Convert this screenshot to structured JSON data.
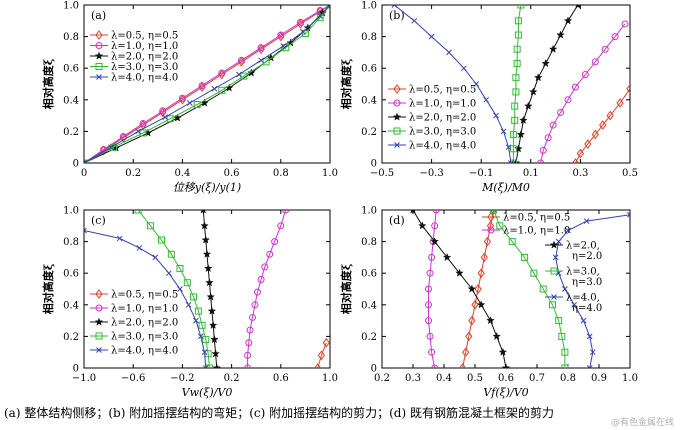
{
  "caption": "(a) 整体结构侧移；(b) 附加摇摆结构的弯矩；(c) 附加摇摆结构的剪力；(d) 既有钢筋混凝土框架的剪力",
  "watermark": "@有色金属在线",
  "series_style": [
    {
      "color": "#d9412c",
      "marker": "diamond"
    },
    {
      "color": "#cc33cc",
      "marker": "circle"
    },
    {
      "color": "#111111",
      "marker": "star"
    },
    {
      "color": "#33bb33",
      "marker": "square"
    },
    {
      "color": "#3344aa",
      "marker": "x"
    }
  ],
  "chart_data": [
    {
      "type": "line",
      "panel_label": "(a)",
      "xlabel": "位移y(ξ)/y(1)",
      "ylabel": "相对高度ξ",
      "xlim": [
        0,
        1.0
      ],
      "ylim": [
        0,
        1.0
      ],
      "xticks": [
        "0",
        "0.2",
        "0.4",
        "0.6",
        "0.8",
        "1.0"
      ],
      "yticks": [
        "0",
        "0.2",
        "0.4",
        "0.6",
        "0.8",
        "1.0"
      ],
      "legend": "top-left",
      "series": [
        {
          "name": "λ=0.5, η=0.5",
          "x": [
            0,
            0.08,
            0.16,
            0.24,
            0.32,
            0.4,
            0.48,
            0.56,
            0.64,
            0.72,
            0.8,
            0.88,
            0.96,
            1.0
          ],
          "y": [
            0,
            0.08,
            0.16,
            0.24,
            0.32,
            0.4,
            0.48,
            0.56,
            0.64,
            0.72,
            0.8,
            0.88,
            0.96,
            1.0
          ]
        },
        {
          "name": "λ=1.0, η=1.0",
          "x": [
            0,
            0.08,
            0.16,
            0.24,
            0.32,
            0.4,
            0.48,
            0.56,
            0.64,
            0.72,
            0.8,
            0.88,
            0.96,
            1.0
          ],
          "y": [
            0,
            0.085,
            0.168,
            0.25,
            0.33,
            0.41,
            0.49,
            0.57,
            0.65,
            0.73,
            0.81,
            0.89,
            0.965,
            1.0
          ]
        },
        {
          "name": "λ=2.0, η=2.0",
          "x": [
            0,
            0.13,
            0.26,
            0.38,
            0.49,
            0.59,
            0.68,
            0.76,
            0.84,
            0.91,
            0.97,
            1.0
          ],
          "y": [
            0,
            0.095,
            0.19,
            0.285,
            0.38,
            0.475,
            0.57,
            0.665,
            0.76,
            0.855,
            0.95,
            1.0
          ]
        },
        {
          "name": "λ=3.0, η=3.0",
          "x": [
            0,
            0.12,
            0.24,
            0.35,
            0.46,
            0.56,
            0.65,
            0.74,
            0.82,
            0.9,
            0.96,
            1.0
          ],
          "y": [
            0,
            0.1,
            0.19,
            0.28,
            0.37,
            0.46,
            0.55,
            0.64,
            0.73,
            0.82,
            0.92,
            1.0
          ]
        },
        {
          "name": "λ=4.0, η=4.0",
          "x": [
            0,
            0.11,
            0.22,
            0.33,
            0.43,
            0.53,
            0.63,
            0.72,
            0.81,
            0.89,
            0.96,
            1.0
          ],
          "y": [
            0,
            0.1,
            0.2,
            0.29,
            0.38,
            0.47,
            0.56,
            0.65,
            0.74,
            0.83,
            0.93,
            1.0
          ]
        }
      ]
    },
    {
      "type": "line",
      "panel_label": "(b)",
      "xlabel": "M(ξ)/M0",
      "ylabel": "相对高度ξ",
      "xlim": [
        -0.5,
        0.5
      ],
      "ylim": [
        0,
        1.0
      ],
      "xticks": [
        "−0.5",
        "−0.3",
        "−0.1",
        "0.1",
        "0.3",
        "0.5"
      ],
      "yticks": [
        "0",
        "0.2",
        "0.4",
        "0.6",
        "0.8",
        "1.0"
      ],
      "legend": "bottom-left",
      "series": [
        {
          "name": "λ=0.5, η=0.5",
          "x": [
            0.28,
            0.3,
            0.33,
            0.36,
            0.39,
            0.42,
            0.46,
            0.5
          ],
          "y": [
            0,
            0.06,
            0.12,
            0.18,
            0.24,
            0.3,
            0.38,
            0.47
          ]
        },
        {
          "name": "λ=1.0, η=1.0",
          "x": [
            0.14,
            0.15,
            0.17,
            0.19,
            0.22,
            0.25,
            0.28,
            0.32,
            0.36,
            0.4,
            0.44,
            0.48
          ],
          "y": [
            0,
            0.08,
            0.16,
            0.24,
            0.32,
            0.4,
            0.48,
            0.56,
            0.64,
            0.72,
            0.8,
            0.88
          ]
        },
        {
          "name": "λ=2.0, η=2.0",
          "x": [
            0.04,
            0.05,
            0.06,
            0.07,
            0.09,
            0.11,
            0.13,
            0.16,
            0.19,
            0.22,
            0.25,
            0.29
          ],
          "y": [
            0,
            0.09,
            0.18,
            0.27,
            0.36,
            0.45,
            0.54,
            0.63,
            0.72,
            0.81,
            0.9,
            1.0
          ]
        },
        {
          "name": "λ=3.0, η=3.0",
          "x": [
            0.03,
            0.03,
            0.03,
            0.035,
            0.035,
            0.04,
            0.04,
            0.045,
            0.045,
            0.05,
            0.05,
            0.06
          ],
          "y": [
            0,
            0.09,
            0.18,
            0.27,
            0.36,
            0.45,
            0.54,
            0.63,
            0.72,
            0.81,
            0.9,
            1.0
          ]
        },
        {
          "name": "λ=4.0, η=4.0",
          "x": [
            0.02,
            0.01,
            -0.01,
            -0.04,
            -0.08,
            -0.12,
            -0.17,
            -0.23,
            -0.3,
            -0.37,
            -0.45
          ],
          "y": [
            0,
            0.1,
            0.2,
            0.3,
            0.4,
            0.5,
            0.6,
            0.7,
            0.8,
            0.9,
            1.0
          ]
        }
      ]
    },
    {
      "type": "line",
      "panel_label": "(c)",
      "xlabel": "Vw(ξ)/V0",
      "ylabel": "相对高度ξ",
      "xlim": [
        -1.0,
        1.0
      ],
      "ylim": [
        0,
        1.0
      ],
      "xticks": [
        "−1.0",
        "−0.6",
        "−0.2",
        "0.2",
        "0.6",
        "1.0"
      ],
      "yticks": [
        "0",
        "0.2",
        "0.4",
        "0.6",
        "0.8",
        "1.0"
      ],
      "legend": "bottom-left",
      "series": [
        {
          "name": "λ=0.5, η=0.5",
          "x": [
            0.9,
            0.93,
            0.97
          ],
          "y": [
            0,
            0.08,
            0.16
          ]
        },
        {
          "name": "λ=1.0, η=1.0",
          "x": [
            0.33,
            0.33,
            0.34,
            0.35,
            0.37,
            0.39,
            0.41,
            0.44,
            0.47,
            0.51,
            0.55,
            0.6,
            0.64
          ],
          "y": [
            0,
            0.08,
            0.16,
            0.24,
            0.32,
            0.4,
            0.48,
            0.56,
            0.64,
            0.72,
            0.8,
            0.9,
            1.0
          ]
        },
        {
          "name": "λ=2.0, η=2.0",
          "x": [
            0.08,
            0.07,
            0.06,
            0.05,
            0.04,
            0.03,
            0.02,
            0.01,
            0.0,
            -0.01,
            -0.02,
            -0.03
          ],
          "y": [
            0,
            0.09,
            0.18,
            0.27,
            0.36,
            0.45,
            0.54,
            0.63,
            0.72,
            0.81,
            0.9,
            1.0
          ]
        },
        {
          "name": "λ=3.0, η=3.0",
          "x": [
            0.02,
            0.01,
            -0.01,
            -0.04,
            -0.07,
            -0.11,
            -0.16,
            -0.22,
            -0.29,
            -0.37,
            -0.46,
            -0.56
          ],
          "y": [
            0,
            0.09,
            0.18,
            0.27,
            0.36,
            0.45,
            0.54,
            0.63,
            0.72,
            0.81,
            0.9,
            1.0
          ]
        },
        {
          "name": "λ=4.0, η=4.0",
          "x": [
            -0.01,
            -0.02,
            -0.05,
            -0.09,
            -0.15,
            -0.22,
            -0.31,
            -0.42,
            -0.55,
            -0.71,
            -1.0
          ],
          "y": [
            0,
            0.1,
            0.2,
            0.3,
            0.4,
            0.5,
            0.6,
            0.7,
            0.76,
            0.82,
            0.87
          ]
        }
      ]
    },
    {
      "type": "line",
      "panel_label": "(d)",
      "xlabel": "Vf(ξ)/V0",
      "ylabel": "相对高度ξ",
      "xlim": [
        0.2,
        1.0
      ],
      "ylim": [
        0,
        1.0
      ],
      "xticks": [
        "0.2",
        "0.3",
        "0.4",
        "0.5",
        "0.6",
        "0.7",
        "0.8",
        "0.9",
        "1.0"
      ],
      "yticks": [
        "0",
        "0.2",
        "0.4",
        "0.6",
        "0.8",
        "1.0"
      ],
      "legend": "split",
      "series": [
        {
          "name": "λ=0.5, η=0.5",
          "x": [
            0.46,
            0.47,
            0.48,
            0.49,
            0.5,
            0.51,
            0.52,
            0.53,
            0.54,
            0.55,
            0.56
          ],
          "y": [
            0,
            0.1,
            0.2,
            0.3,
            0.4,
            0.5,
            0.6,
            0.7,
            0.8,
            0.9,
            1.0
          ]
        },
        {
          "name": "λ=1.0, η=1.0",
          "x": [
            0.37,
            0.36,
            0.355,
            0.35,
            0.35,
            0.35,
            0.355,
            0.36,
            0.365,
            0.37,
            0.375
          ],
          "y": [
            0,
            0.1,
            0.2,
            0.3,
            0.4,
            0.5,
            0.6,
            0.7,
            0.8,
            0.9,
            1.0
          ]
        },
        {
          "name": "λ=2.0, η=2.0",
          "x": [
            0.6,
            0.59,
            0.57,
            0.55,
            0.52,
            0.49,
            0.45,
            0.41,
            0.37,
            0.33,
            0.3
          ],
          "y": [
            0,
            0.1,
            0.2,
            0.3,
            0.4,
            0.5,
            0.6,
            0.7,
            0.8,
            0.9,
            1.0
          ]
        },
        {
          "name": "λ=3.0, η=3.0",
          "x": [
            0.79,
            0.79,
            0.78,
            0.77,
            0.75,
            0.72,
            0.69,
            0.66,
            0.62,
            0.58,
            0.56
          ],
          "y": [
            0,
            0.1,
            0.2,
            0.3,
            0.4,
            0.5,
            0.6,
            0.7,
            0.8,
            0.9,
            1.0
          ]
        },
        {
          "name": "λ=4.0, η=4.0",
          "x": [
            0.87,
            0.88,
            0.87,
            0.85,
            0.82,
            0.79,
            0.77,
            0.76,
            0.77,
            0.8,
            0.86,
            1.0
          ],
          "y": [
            0,
            0.1,
            0.2,
            0.3,
            0.4,
            0.5,
            0.6,
            0.7,
            0.8,
            0.87,
            0.93,
            0.97
          ]
        }
      ]
    }
  ]
}
